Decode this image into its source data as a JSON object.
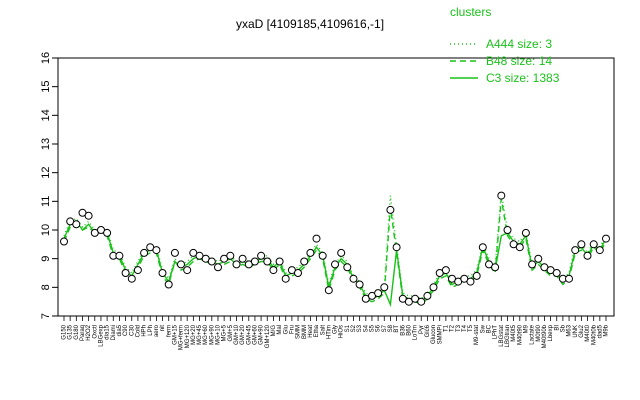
{
  "colors": {
    "line": "#19c219",
    "points": "#000000",
    "point_fill": "#ffffff"
  },
  "chart_data": {
    "type": "line",
    "title": "yxaD [4109185,4109616,-1]",
    "xlabel": "",
    "ylabel": "",
    "ylim": [
      7,
      16
    ],
    "yticks": [
      7,
      8,
      9,
      10,
      11,
      12,
      13,
      14,
      15,
      16
    ],
    "legend": {
      "title": "clusters",
      "position": "top-right",
      "entries": [
        {
          "label": "A444 size: 3",
          "style": "dotted"
        },
        {
          "label": "B48 size: 14",
          "style": "dashed"
        },
        {
          "label": "C3 size: 1383",
          "style": "solid"
        }
      ]
    },
    "x_labels": [
      "G150",
      "G135",
      "G180",
      "Paraq",
      "H2O2",
      "Oxctl",
      "LBGexp",
      "dia15",
      "Diami",
      "dia5",
      "C90",
      "C30",
      "Cold",
      "HPh",
      "LPh",
      "aero",
      "nit",
      "ferm",
      "GM+15",
      "MG+ferm",
      "MG+120",
      "MG+20",
      "MG+45",
      "MG+60",
      "MG+90",
      "MG+10",
      "MG+5",
      "GM+5",
      "GM+10",
      "GM+20",
      "GM+45",
      "GM+60",
      "GM+90",
      "GM+120",
      "M/G",
      "Mal",
      "Glu",
      "Fru",
      "SMM",
      "BMM",
      "Heat",
      "Etha",
      "Salt",
      "HTim",
      "Gly",
      "HiOs",
      "S1",
      "S2",
      "S3",
      "S4",
      "S5",
      "S6",
      "S7",
      "S8",
      "BT",
      "B36",
      "B60",
      "LoTm",
      "Pyr",
      "Glc6",
      "Glucon",
      "SMMPi",
      "T1",
      "T2",
      "T3",
      "T4",
      "T5",
      "M9-stat",
      "Sw",
      "BC",
      "LPhT",
      "LBGstat",
      "LBGtran",
      "M40t5",
      "M40t90",
      "M9",
      "Lactate",
      "M0t90",
      "M40t90b",
      "Lbexp",
      "BI",
      "Sb",
      "M63",
      "UNK",
      "Glu2",
      "M40t0",
      "M40t0b",
      "dad5",
      "M9b"
    ],
    "series": [
      {
        "style": "solid",
        "values": [
          9.7,
          10.2,
          10.3,
          10.0,
          10.2,
          9.9,
          10.0,
          9.9,
          9.2,
          9.1,
          8.6,
          8.4,
          8.8,
          9.2,
          9.3,
          9.3,
          8.5,
          8.2,
          8.9,
          8.7,
          8.8,
          9.0,
          9.1,
          9.0,
          8.9,
          8.8,
          8.9,
          9.0,
          8.8,
          8.9,
          8.8,
          8.9,
          9.0,
          9.0,
          8.7,
          8.9,
          8.4,
          8.5,
          8.6,
          8.8,
          9.1,
          9.4,
          9.1,
          8.0,
          8.7,
          9.0,
          8.8,
          8.3,
          8.1,
          7.7,
          7.6,
          7.7,
          7.9,
          7.4,
          9.3,
          7.7,
          7.6,
          7.6,
          7.5,
          7.7,
          8.0,
          8.4,
          8.5,
          8.1,
          8.2,
          8.3,
          8.3,
          8.5,
          9.4,
          8.9,
          8.6,
          9.8,
          9.9,
          9.6,
          9.5,
          9.8,
          8.7,
          8.9,
          8.7,
          8.5,
          8.5,
          8.2,
          8.4,
          9.3,
          9.4,
          9.1,
          9.5,
          9.3,
          9.7
        ]
      },
      {
        "style": "dashed",
        "values": [
          9.6,
          10.1,
          10.2,
          10.0,
          10.1,
          9.9,
          10.0,
          9.8,
          9.1,
          9.0,
          8.5,
          8.3,
          8.7,
          9.1,
          9.2,
          9.2,
          8.4,
          8.1,
          8.9,
          8.6,
          8.7,
          8.9,
          9.0,
          8.9,
          8.8,
          8.7,
          8.8,
          8.9,
          8.7,
          8.8,
          8.7,
          8.8,
          8.9,
          8.9,
          8.6,
          8.8,
          8.3,
          8.4,
          8.5,
          8.7,
          9.0,
          9.3,
          9.0,
          7.9,
          8.6,
          8.9,
          8.7,
          8.2,
          8.0,
          7.6,
          7.5,
          7.6,
          7.8,
          10.8,
          9.2,
          7.6,
          7.5,
          7.5,
          7.4,
          7.6,
          7.9,
          8.3,
          8.4,
          8.0,
          8.1,
          8.2,
          8.2,
          8.4,
          9.3,
          8.8,
          8.5,
          11.1,
          9.8,
          9.5,
          9.4,
          9.7,
          8.6,
          8.8,
          8.6,
          8.4,
          8.4,
          8.1,
          8.3,
          9.2,
          9.3,
          9.0,
          9.4,
          9.2,
          9.6
        ]
      },
      {
        "style": "dotted",
        "values": [
          9.8,
          10.3,
          10.4,
          10.1,
          10.3,
          10.0,
          10.1,
          10.0,
          9.3,
          9.2,
          8.7,
          8.5,
          8.9,
          9.3,
          9.4,
          9.4,
          8.6,
          8.3,
          9.0,
          8.8,
          8.9,
          9.1,
          9.2,
          9.1,
          9.0,
          8.9,
          9.0,
          9.1,
          8.9,
          9.0,
          8.9,
          9.0,
          9.1,
          9.1,
          8.8,
          9.0,
          8.5,
          8.6,
          8.7,
          8.9,
          9.2,
          9.5,
          9.2,
          8.1,
          8.8,
          9.1,
          8.9,
          8.4,
          8.2,
          7.8,
          7.7,
          7.8,
          8.0,
          11.2,
          9.4,
          7.8,
          7.7,
          7.7,
          7.6,
          7.8,
          8.1,
          8.5,
          8.6,
          8.2,
          8.3,
          8.4,
          8.4,
          8.6,
          9.5,
          9.0,
          8.7,
          11.3,
          10.0,
          9.7,
          9.6,
          9.9,
          8.8,
          9.0,
          8.8,
          8.6,
          8.6,
          8.3,
          8.5,
          9.4,
          9.5,
          9.2,
          9.6,
          9.4,
          9.8
        ]
      }
    ],
    "points": [
      9.6,
      10.3,
      10.2,
      10.6,
      10.5,
      9.9,
      10.0,
      9.9,
      9.1,
      9.1,
      8.5,
      8.3,
      8.6,
      9.2,
      9.4,
      9.3,
      8.5,
      8.1,
      9.2,
      8.8,
      8.6,
      9.2,
      9.1,
      9.0,
      8.9,
      8.7,
      9.0,
      9.1,
      8.8,
      9.0,
      8.8,
      8.9,
      9.1,
      8.9,
      8.6,
      8.9,
      8.3,
      8.6,
      8.5,
      8.9,
      9.2,
      9.7,
      9.1,
      7.9,
      8.8,
      9.2,
      8.7,
      8.3,
      8.1,
      7.6,
      7.7,
      7.8,
      8.0,
      10.7,
      9.4,
      7.6,
      7.5,
      7.6,
      7.5,
      7.7,
      8.0,
      8.5,
      8.6,
      8.3,
      8.2,
      8.3,
      8.2,
      8.4,
      9.4,
      8.8,
      8.7,
      11.2,
      10.0,
      9.5,
      9.4,
      9.9,
      8.8,
      9.0,
      8.7,
      8.6,
      8.5,
      8.3,
      8.3,
      9.3,
      9.5,
      9.1,
      9.5,
      9.3,
      9.7
    ]
  }
}
